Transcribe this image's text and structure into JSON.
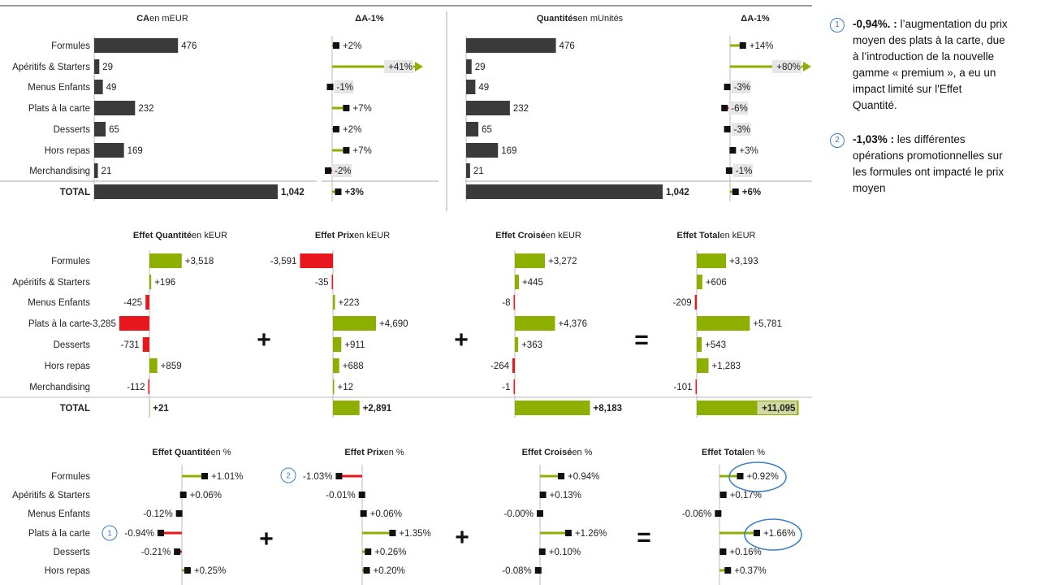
{
  "chart_data": [
    {
      "type": "bar",
      "id": "ca",
      "title": "CA",
      "unit": "en mEUR",
      "categories": [
        "Formules",
        "Apéritifs & Starters",
        "Menus Enfants",
        "Plats à la carte",
        "Desserts",
        "Hors repas",
        "Merchandising"
      ],
      "values": [
        476,
        29,
        49,
        232,
        65,
        169,
        21
      ],
      "labels": [
        "476",
        "29",
        "49",
        "232",
        "65",
        "169",
        "21"
      ],
      "total_label": "TOTAL",
      "total": 1042,
      "total_text": "1,042"
    },
    {
      "type": "bar",
      "id": "ca_delta",
      "title": "ΔA-1%",
      "values": [
        2,
        41,
        -1,
        7,
        2,
        7,
        -2
      ],
      "labels": [
        "+2%",
        "+41%",
        "-1%",
        "+7%",
        "+2%",
        "+7%",
        "-2%"
      ],
      "total": 3,
      "total_text": "+3%"
    },
    {
      "type": "bar",
      "id": "qty",
      "title": "Quantités",
      "unit": "en mUnités",
      "values": [
        476,
        29,
        49,
        232,
        65,
        169,
        21
      ],
      "labels": [
        "476",
        "29",
        "49",
        "232",
        "65",
        "169",
        "21"
      ],
      "total": 1042,
      "total_text": "1,042"
    },
    {
      "type": "bar",
      "id": "qty_delta",
      "title": "ΔA-1%",
      "values": [
        14,
        80,
        -3,
        -6,
        -3,
        3,
        -1
      ],
      "labels": [
        "+14%",
        "+80%",
        "-3%",
        "-6%",
        "-3%",
        "+3%",
        "-1%"
      ],
      "total": 6,
      "total_text": "+6%"
    },
    {
      "type": "bar",
      "id": "eq",
      "title": "Effet Quantité",
      "unit": "en kEUR",
      "values": [
        3518,
        196,
        -425,
        -3285,
        -731,
        859,
        -112
      ],
      "labels": [
        "+3,518",
        "+196",
        "-425",
        "-3,285",
        "-731",
        "+859",
        "-112"
      ],
      "total": 21,
      "total_text": "+21"
    },
    {
      "type": "bar",
      "id": "ep",
      "title": "Effet Prix",
      "unit": "en kEUR",
      "values": [
        -3591,
        -35,
        223,
        4690,
        911,
        688,
        12
      ],
      "labels": [
        "-3,591",
        "-35",
        "+223",
        "+4,690",
        "+911",
        "+688",
        "+12"
      ],
      "total": 2891,
      "total_text": "+2,891"
    },
    {
      "type": "bar",
      "id": "ec",
      "title": "Effet Croisé",
      "unit": "en kEUR",
      "values": [
        3272,
        445,
        -8,
        4376,
        363,
        -264,
        -1
      ],
      "labels": [
        "+3,272",
        "+445",
        "-8",
        "+4,376",
        "+363",
        "-264",
        "-1"
      ],
      "total": 8183,
      "total_text": "+8,183"
    },
    {
      "type": "bar",
      "id": "et",
      "title": "Effet Total",
      "unit": "en kEUR",
      "values": [
        3193,
        606,
        -209,
        5781,
        543,
        1283,
        -101
      ],
      "labels": [
        "+3,193",
        "+606",
        "-209",
        "+5,781",
        "+543",
        "+1,283",
        "-101"
      ],
      "total": 11095,
      "total_text": "+11,095"
    },
    {
      "type": "bar",
      "id": "eqp",
      "title": "Effet Quantité",
      "unit": "en %",
      "values": [
        1.01,
        0.06,
        -0.12,
        -0.94,
        -0.21,
        0.25
      ],
      "labels": [
        "+1.01%",
        "+0.06%",
        "-0.12%",
        "-0.94%",
        "-0.21%",
        "+0.25%"
      ]
    },
    {
      "type": "bar",
      "id": "epp",
      "title": "Effet Prix",
      "unit": "en %",
      "values": [
        -1.03,
        -0.01,
        0.06,
        1.35,
        0.26,
        0.2
      ],
      "labels": [
        "-1.03%",
        "-0.01%",
        "+0.06%",
        "+1.35%",
        "+0.26%",
        "+0.20%"
      ]
    },
    {
      "type": "bar",
      "id": "ecp",
      "title": "Effet Croisé",
      "unit": "en %",
      "values": [
        0.94,
        0.13,
        0.0,
        1.26,
        0.1,
        -0.08
      ],
      "labels": [
        "+0.94%",
        "+0.13%",
        "-0.00%",
        "+1.26%",
        "+0.10%",
        "-0.08%"
      ]
    },
    {
      "type": "bar",
      "id": "etp",
      "title": "Effet Total",
      "unit": "en %",
      "values": [
        0.92,
        0.17,
        -0.06,
        1.66,
        0.16,
        0.37
      ],
      "labels": [
        "+0.92%",
        "+0.17%",
        "-0.06%",
        "+1.66%",
        "+0.16%",
        "+0.37%"
      ]
    }
  ],
  "operators": {
    "plus": "+",
    "equals": "="
  },
  "markers": {
    "one": "1",
    "two": "2"
  },
  "colors": {
    "dark": "#3a3a3a",
    "positive": "#8db000",
    "negative": "#e8161d",
    "marker_circle": "#3a7dc8"
  },
  "notes": [
    {
      "num": "1",
      "bold": "-0,94%. :",
      "text": " l’augmentation du prix moyen des plats à la carte, due à l’introduction de la nouvelle gamme « premium », a eu un impact limité sur l'Effet Quantité."
    },
    {
      "num": "2",
      "bold": "-1,03% :",
      "text": " les différentes opérations promotionnelles sur les formules ont impacté le prix moyen"
    }
  ]
}
